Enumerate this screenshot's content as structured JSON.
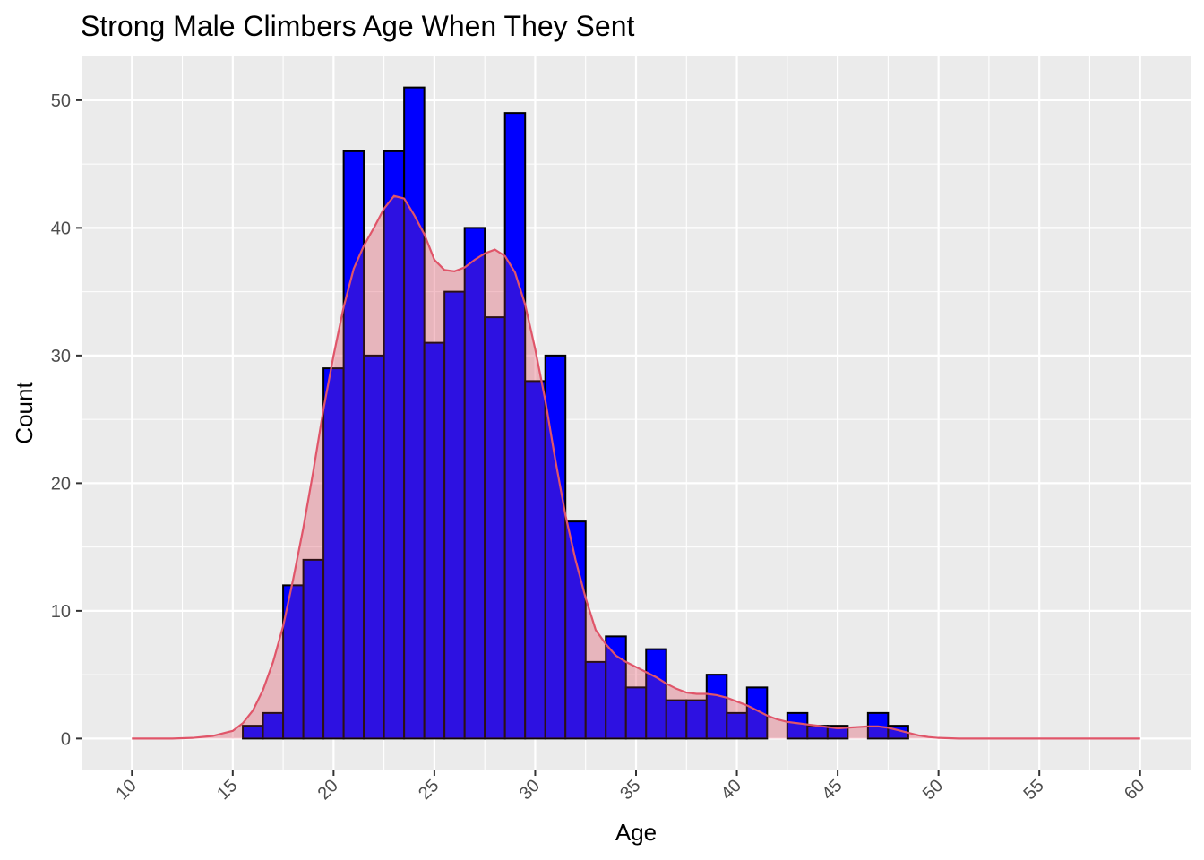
{
  "colors": {
    "panel_background": "#EBEBEB",
    "grid_major": "#FFFFFF",
    "bar_fill": "#0000FF",
    "bar_outline": "#000000",
    "density_line": "#E05569",
    "density_fill": "#E05569",
    "tick_text": "#4D4D4D"
  },
  "chart_data": {
    "type": "bar",
    "title": "Strong Male Climbers Age When They Sent",
    "xlabel": "Age",
    "ylabel": "Count",
    "xlim": [
      7.5,
      62.5
    ],
    "ylim": [
      -2.5,
      53.5
    ],
    "x_ticks": [
      10,
      15,
      20,
      25,
      30,
      35,
      40,
      45,
      50,
      55,
      60
    ],
    "y_ticks": [
      0,
      10,
      20,
      30,
      40,
      50
    ],
    "x_tick_label_rotation_deg": 45,
    "grid": true,
    "legend": "none",
    "bin_width": 1,
    "bins": [
      {
        "x": 15,
        "count": 0
      },
      {
        "x": 16,
        "count": 1
      },
      {
        "x": 17,
        "count": 2
      },
      {
        "x": 18,
        "count": 12
      },
      {
        "x": 19,
        "count": 14
      },
      {
        "x": 20,
        "count": 29
      },
      {
        "x": 21,
        "count": 46
      },
      {
        "x": 22,
        "count": 30
      },
      {
        "x": 23,
        "count": 46
      },
      {
        "x": 24,
        "count": 51
      },
      {
        "x": 25,
        "count": 31
      },
      {
        "x": 26,
        "count": 35
      },
      {
        "x": 27,
        "count": 40
      },
      {
        "x": 28,
        "count": 33
      },
      {
        "x": 29,
        "count": 49
      },
      {
        "x": 30,
        "count": 28
      },
      {
        "x": 31,
        "count": 30
      },
      {
        "x": 32,
        "count": 17
      },
      {
        "x": 33,
        "count": 6
      },
      {
        "x": 34,
        "count": 8
      },
      {
        "x": 35,
        "count": 4
      },
      {
        "x": 36,
        "count": 7
      },
      {
        "x": 37,
        "count": 3
      },
      {
        "x": 38,
        "count": 3
      },
      {
        "x": 39,
        "count": 5
      },
      {
        "x": 40,
        "count": 2
      },
      {
        "x": 41,
        "count": 4
      },
      {
        "x": 42,
        "count": 0
      },
      {
        "x": 43,
        "count": 2
      },
      {
        "x": 44,
        "count": 1
      },
      {
        "x": 45,
        "count": 1
      },
      {
        "x": 46,
        "count": 0
      },
      {
        "x": 47,
        "count": 2
      },
      {
        "x": 48,
        "count": 1
      }
    ],
    "density_curve": {
      "x": [
        10,
        12,
        13,
        14,
        15,
        15.5,
        16,
        16.5,
        17,
        17.5,
        18,
        18.5,
        19,
        19.5,
        20,
        20.5,
        21,
        21.5,
        22,
        22.5,
        23,
        23.5,
        24,
        24.5,
        25,
        25.5,
        26,
        26.5,
        27,
        27.5,
        28,
        28.5,
        29,
        29.5,
        30,
        30.5,
        31,
        31.5,
        32,
        32.5,
        33,
        33.5,
        34,
        34.5,
        35,
        35.5,
        36,
        36.5,
        37,
        37.5,
        38,
        38.5,
        39,
        39.5,
        40,
        40.5,
        41,
        41.5,
        42,
        42.5,
        43,
        43.5,
        44,
        44.5,
        45,
        45.5,
        46,
        46.5,
        47,
        47.5,
        48,
        48.5,
        49,
        49.5,
        50,
        51,
        52,
        55,
        60
      ],
      "y": [
        0,
        0,
        0.05,
        0.2,
        0.6,
        1.2,
        2.2,
        3.8,
        6,
        8.8,
        12.5,
        16.5,
        21,
        25.8,
        30,
        33.8,
        36.8,
        38.6,
        40,
        41.5,
        42.5,
        42.3,
        41,
        39.5,
        37.5,
        36.7,
        36.6,
        36.9,
        37.5,
        38,
        38.3,
        37.8,
        36.5,
        34,
        30.5,
        26.5,
        21.8,
        17.5,
        14,
        11,
        8.5,
        7.4,
        6.5,
        6,
        5.6,
        5.2,
        4.8,
        4.3,
        3.9,
        3.6,
        3.5,
        3.5,
        3.4,
        3.2,
        2.9,
        2.6,
        2.2,
        1.8,
        1.5,
        1.3,
        1.2,
        1.1,
        1,
        0.9,
        0.8,
        0.85,
        0.9,
        0.95,
        0.95,
        0.85,
        0.65,
        0.45,
        0.25,
        0.12,
        0.05,
        0,
        0,
        0,
        0
      ]
    }
  }
}
